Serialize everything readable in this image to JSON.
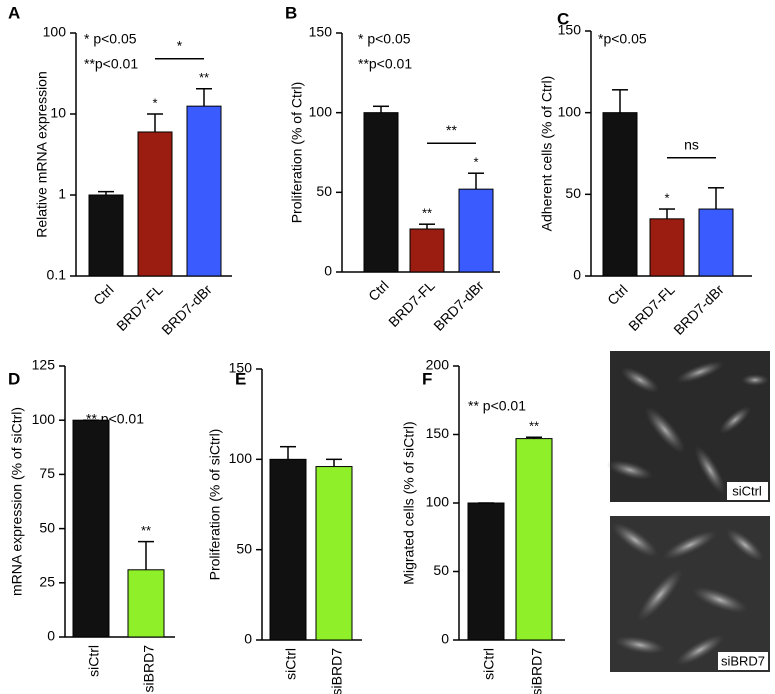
{
  "chart_data": [
    {
      "type": "bar",
      "panel_label": "A",
      "ylabel": "Relative mRNA expression",
      "log_scale": true,
      "categories": [
        "Ctrl",
        "BRD7-FL",
        "BRD7-dBr"
      ],
      "values": [
        1.0,
        6,
        12.5
      ],
      "errors": [
        0.1,
        4,
        8
      ],
      "colors": [
        "#111111",
        "#9b1c10",
        "#3a5cff"
      ],
      "ylim": [
        0.1,
        100
      ],
      "yticks": [
        0.1,
        1,
        10,
        100
      ],
      "annotations": [
        "* p<0.05",
        "**p<0.01"
      ],
      "bar_marks": [
        null,
        "*",
        "**"
      ],
      "bracket": {
        "categories": [
          "BRD7-FL",
          "BRD7-dBr"
        ],
        "label": "*"
      }
    },
    {
      "type": "bar",
      "panel_label": "B",
      "ylabel": "Proliferation (% of Ctrl)",
      "log_scale": false,
      "categories": [
        "Ctrl",
        "BRD7-FL",
        "BRD7-dBr"
      ],
      "values": [
        100,
        27,
        52
      ],
      "errors": [
        4,
        3,
        10
      ],
      "colors": [
        "#111111",
        "#9b1c10",
        "#3a5cff"
      ],
      "ylim": [
        0,
        150
      ],
      "yticks": [
        0,
        50,
        100,
        150
      ],
      "annotations": [
        "* p<0.05",
        "**p<0.01"
      ],
      "bar_marks": [
        null,
        "**",
        "*"
      ],
      "bracket": {
        "categories": [
          "BRD7-FL",
          "BRD7-dBr"
        ],
        "label": "**"
      }
    },
    {
      "type": "bar",
      "panel_label": "C",
      "ylabel": "Adherent  cells (% of Ctrl)",
      "log_scale": false,
      "categories": [
        "Ctrl",
        "BRD7-FL",
        "BRD7-dBr"
      ],
      "values": [
        100,
        35,
        41
      ],
      "errors": [
        14,
        6,
        13
      ],
      "colors": [
        "#111111",
        "#9b1c10",
        "#3a5cff"
      ],
      "ylim": [
        0,
        150
      ],
      "yticks": [
        0,
        50,
        100,
        150
      ],
      "annotations": [
        "*p<0.05"
      ],
      "bar_marks": [
        null,
        "*",
        null
      ],
      "bracket": {
        "categories": [
          "BRD7-FL",
          "BRD7-dBr"
        ],
        "label": "ns"
      }
    },
    {
      "type": "bar",
      "panel_label": "D",
      "ylabel": "mRNA expression (% of siCtrl)",
      "log_scale": false,
      "categories": [
        "siCtrl",
        "siBRD7"
      ],
      "values": [
        100,
        31
      ],
      "errors": [
        0,
        13
      ],
      "colors": [
        "#111111",
        "#8ff02a"
      ],
      "ylim": [
        0,
        125
      ],
      "yticks": [
        0,
        25,
        50,
        75,
        100,
        125
      ],
      "annotations": [
        "** p<0.01"
      ],
      "bar_marks": [
        null,
        "**"
      ]
    },
    {
      "type": "bar",
      "panel_label": "E",
      "ylabel": "Proliferation (% of siCtrl)",
      "log_scale": false,
      "categories": [
        "siCtrl",
        "siBRD7"
      ],
      "values": [
        100,
        96
      ],
      "errors": [
        7,
        4
      ],
      "colors": [
        "#111111",
        "#8ff02a"
      ],
      "ylim": [
        0,
        150
      ],
      "yticks": [
        0,
        50,
        100,
        150
      ],
      "annotations": [],
      "bar_marks": [
        null,
        null
      ]
    },
    {
      "type": "bar",
      "panel_label": "F",
      "ylabel": "Migrated cells (% of siCtrl)",
      "log_scale": false,
      "categories": [
        "siCtrl",
        "siBRD7"
      ],
      "values": [
        100,
        147
      ],
      "errors": [
        0,
        1
      ],
      "colors": [
        "#111111",
        "#8ff02a"
      ],
      "ylim": [
        0,
        200
      ],
      "yticks": [
        0,
        50,
        100,
        150,
        200
      ],
      "annotations": [
        "** p<0.01"
      ],
      "bar_marks": [
        null,
        "**"
      ]
    }
  ],
  "images": [
    {
      "label": "siCtrl"
    },
    {
      "label": "siBRD7"
    }
  ]
}
